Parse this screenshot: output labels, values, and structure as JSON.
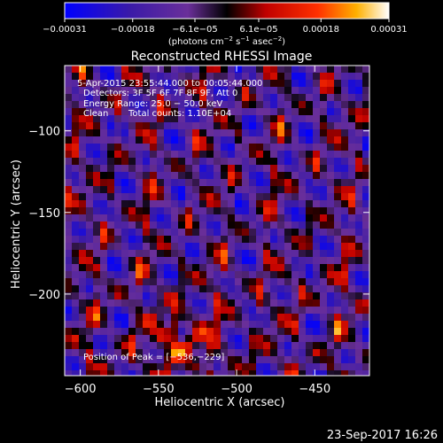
{
  "chart_data": {
    "type": "heatmap",
    "title": "Reconstructed RHESSI Image",
    "xlabel": "Heliocentric X (arcsec)",
    "ylabel": "Heliocentric Y (arcsec)",
    "xlim": [
      -610,
      -415
    ],
    "ylim": [
      -250,
      -60
    ],
    "x_ticks": [
      -600,
      -550,
      -500,
      -450
    ],
    "x_tick_labels": [
      "−600",
      "−550",
      "−500",
      "−450"
    ],
    "y_ticks": [
      -100,
      -150,
      -200
    ],
    "y_tick_labels": [
      "−100",
      "−150",
      "−200"
    ],
    "colorbar": {
      "range": [
        -0.00031,
        0.00031
      ],
      "ticks": [
        -0.00031,
        -0.00018,
        -6.1e-05,
        6.1e-05,
        0.00018,
        0.00031
      ],
      "tick_labels": [
        "−0.00031",
        "−0.00018",
        "−6.1e−05",
        "6.1e−05",
        "0.00018",
        "0.00031"
      ],
      "unit_main": "(photons cm",
      "unit_exp1": "−2",
      "unit_mid": " s",
      "unit_exp2": "−1",
      "unit_end": " asec",
      "unit_exp3": "−2",
      "unit_close": ")",
      "colors": [
        "#0000ff",
        "#3a1aa8",
        "#6a2f9a",
        "#000000",
        "#c00000",
        "#ff3000",
        "#ffb000",
        "#ffffff"
      ]
    },
    "grid": false,
    "peak": {
      "x": -536,
      "y": -229
    }
  },
  "annotations": {
    "time_range": "5-Apr-2015 23:55:44.000 to 00:05:44.000",
    "detectors": "Detectors: 3F 5F 6F 7F 8F 9F, Att 0",
    "energy_range": "Energy Range: 25.0 − 50.0 keV",
    "clean_label": "Clean",
    "total_counts": "Total counts: 1.10E+04",
    "peak_position": "Position of Peak = [−536,−229]"
  },
  "footer": {
    "timestamp": "23-Sep-2017 16:26"
  }
}
